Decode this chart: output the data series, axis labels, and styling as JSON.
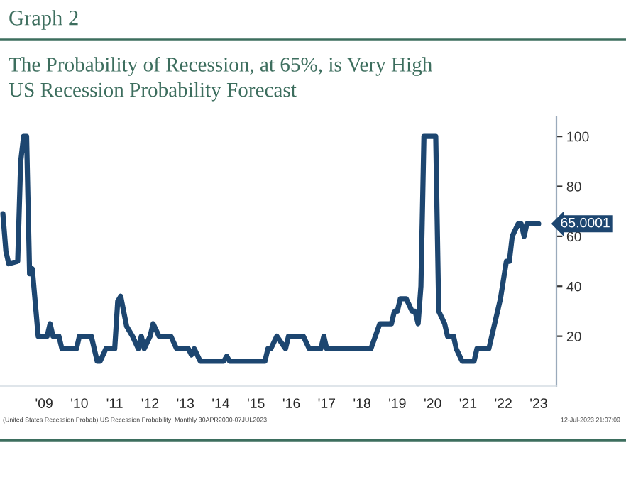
{
  "chart_data": {
    "type": "line",
    "title": "Graph 2",
    "subtitle": "The Probability of Recession, at 65%, is Very High\nUS Recession Probability Forecast",
    "x": [
      "2008-05",
      "2008-06",
      "2008-07",
      "2008-10",
      "2008-11",
      "2008-12",
      "2009-01",
      "2009-02",
      "2009-03",
      "2009-05",
      "2009-08",
      "2009-09",
      "2009-10",
      "2009-12",
      "2010-01",
      "2010-06",
      "2010-07",
      "2010-11",
      "2011-01",
      "2011-02",
      "2011-04",
      "2011-07",
      "2011-08",
      "2011-09",
      "2011-11",
      "2012-01",
      "2012-03",
      "2012-04",
      "2012-05",
      "2012-07",
      "2012-08",
      "2012-10",
      "2013-02",
      "2013-04",
      "2013-08",
      "2013-09",
      "2013-10",
      "2013-12",
      "2014-02",
      "2014-08",
      "2014-09",
      "2014-10",
      "2015-10",
      "2015-11",
      "2015-12",
      "2016-02",
      "2016-05",
      "2016-06",
      "2016-11",
      "2017-01",
      "2017-05",
      "2017-06",
      "2017-07",
      "2018-10",
      "2019-01",
      "2019-05",
      "2019-06",
      "2019-07",
      "2019-08",
      "2019-10",
      "2019-12",
      "2020-01",
      "2020-02",
      "2020-03",
      "2020-04",
      "2020-08",
      "2020-09",
      "2020-11",
      "2020-12",
      "2021-02",
      "2021-03",
      "2021-05",
      "2021-09",
      "2021-10",
      "2022-02",
      "2022-06",
      "2022-08",
      "2022-09",
      "2022-10",
      "2022-12",
      "2023-01",
      "2023-02",
      "2023-03",
      "2023-07"
    ],
    "series": [
      {
        "color": "#1d4670",
        "values": [
          69,
          54,
          49,
          50,
          90,
          100,
          100,
          45,
          47,
          20,
          20,
          25,
          20,
          20,
          15,
          15,
          20,
          20,
          10,
          10,
          15,
          15,
          34,
          36,
          24,
          20,
          15,
          20,
          15,
          20,
          25,
          20,
          20,
          15,
          15,
          12.5,
          15,
          10,
          10,
          10,
          12,
          10,
          10,
          15,
          15,
          20,
          15,
          20,
          20,
          15,
          15,
          20,
          15,
          15,
          25,
          25,
          30,
          30,
          35,
          35,
          30,
          30,
          25,
          40,
          100,
          100,
          30,
          25,
          20,
          20,
          15,
          10,
          10,
          15,
          15,
          35,
          50,
          50,
          60,
          65,
          65,
          60,
          65,
          65
        ]
      }
    ],
    "xlim": [
      "2008-04",
      "2024-01"
    ],
    "ylim": [
      0,
      108
    ],
    "xticks": [
      {
        "value": "2009-07",
        "label": "'09"
      },
      {
        "value": "2010-07",
        "label": "'10"
      },
      {
        "value": "2011-07",
        "label": "'11"
      },
      {
        "value": "2012-07",
        "label": "'12"
      },
      {
        "value": "2013-07",
        "label": "'13"
      },
      {
        "value": "2014-07",
        "label": "'14"
      },
      {
        "value": "2015-07",
        "label": "'15"
      },
      {
        "value": "2016-07",
        "label": "'16"
      },
      {
        "value": "2017-07",
        "label": "'17"
      },
      {
        "value": "2018-07",
        "label": "'18"
      },
      {
        "value": "2019-07",
        "label": "'19"
      },
      {
        "value": "2020-07",
        "label": "'20"
      },
      {
        "value": "2021-07",
        "label": "'21"
      },
      {
        "value": "2022-07",
        "label": "'22"
      },
      {
        "value": "2023-07",
        "label": "'23"
      }
    ],
    "yticks": [
      20,
      40,
      60,
      80,
      100
    ],
    "grid": false,
    "legend": false,
    "marker": "none",
    "line_style": "solid",
    "annotations": [
      {
        "text": "65.0001",
        "x": "2023-07",
        "y": 65
      },
      "(United States Recession Probab) US Recession Probability  Monthly 30APR2000-07JUL2023",
      "12-Jul-2023 21:07:09"
    ]
  }
}
